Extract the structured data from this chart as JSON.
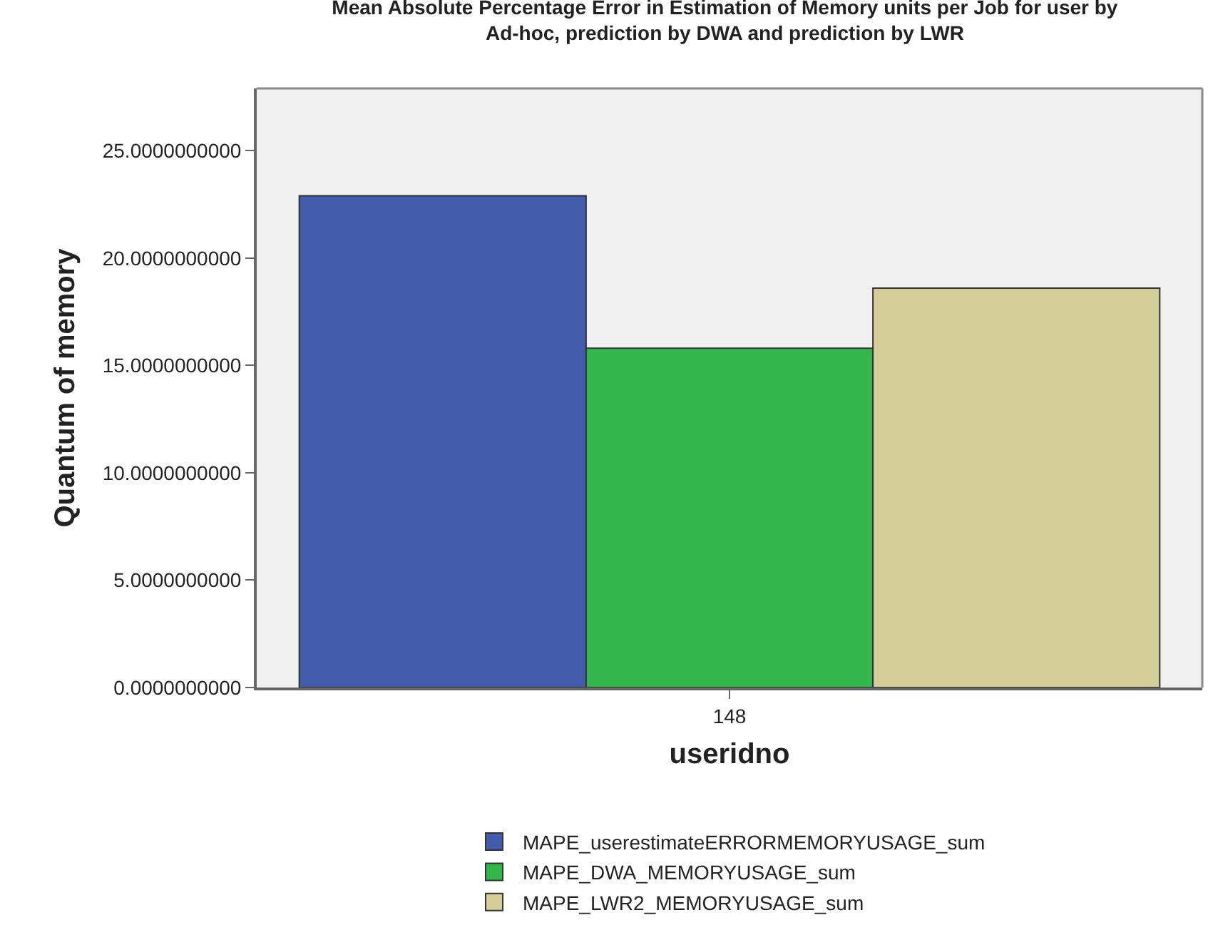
{
  "chart_data": {
    "type": "bar",
    "title": "Mean Absolute Percentage Error in Estimation of Memory units per Job for user by Ad-hoc, prediction by DWA and prediction by LWR",
    "xlabel": "useridno",
    "ylabel": "Quantum of memory",
    "categories": [
      "148"
    ],
    "series": [
      {
        "name": "MAPE_userestimateERRORMEMORYUSAGE_sum",
        "color": "#425bab",
        "values": [
          22.9
        ]
      },
      {
        "name": "MAPE_DWA_MEMORYUSAGE_sum",
        "color": "#33b74c",
        "values": [
          15.8
        ]
      },
      {
        "name": "MAPE_LWR2_MEMORYUSAGE_sum",
        "color": "#d3ce97",
        "values": [
          18.6
        ]
      }
    ],
    "ylim": [
      0,
      27.9
    ],
    "yticks": [
      {
        "value": 0,
        "label": "0.0000000000"
      },
      {
        "value": 5,
        "label": "5.0000000000"
      },
      {
        "value": 10,
        "label": "10.0000000000"
      },
      {
        "value": 15,
        "label": "15.0000000000"
      },
      {
        "value": 20,
        "label": "20.0000000000"
      },
      {
        "value": 25,
        "label": "25.0000000000"
      }
    ],
    "grid": false,
    "legend": "bottom"
  }
}
